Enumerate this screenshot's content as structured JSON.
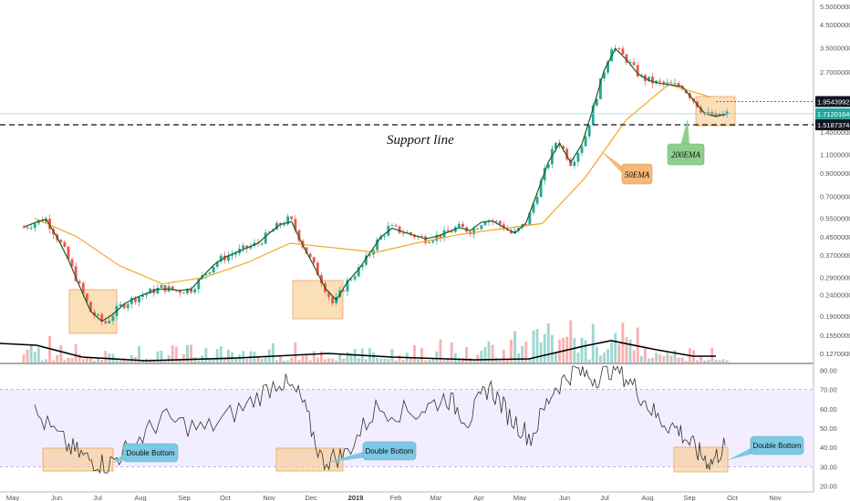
{
  "chart_data": {
    "type": "candlestick",
    "price_axis": {
      "scale": "log",
      "range": [
        0.115,
        5.6
      ],
      "tick_labels": [
        "5.50000000",
        "4.50000000",
        "3.50000000",
        "2.70000000",
        "1.95439925",
        "1.71201640",
        "1.51873745",
        "1.40000000",
        "1.10000000",
        "0.90000000",
        "0.70000000",
        "0.55000000",
        "0.45000000",
        "0.37000000",
        "0.29000000",
        "0.24000000",
        "0.19000000",
        "0.15500000",
        "0.12700000"
      ],
      "tick_values": [
        5.5,
        4.5,
        3.5,
        2.7,
        1.95439925,
        1.7120164,
        1.51873745,
        1.4,
        1.1,
        0.9,
        0.7,
        0.55,
        0.45,
        0.37,
        0.29,
        0.24,
        0.19,
        0.155,
        0.127
      ],
      "badges": [
        {
          "label": "1.95439925",
          "value": 1.95439925,
          "color": "#131722"
        },
        {
          "label": "1.71201640",
          "value": 1.7120164,
          "color": "#26a69a"
        },
        {
          "label": "1.51873745",
          "value": 1.51873745,
          "color": "#131722"
        }
      ]
    },
    "rsi_axis": {
      "range": [
        17,
        83
      ],
      "tick_labels": [
        "80.00",
        "70.00",
        "60.00",
        "50.00",
        "40.00",
        "30.00",
        "20.00"
      ],
      "tick_values": [
        80,
        70,
        60,
        50,
        40,
        30,
        20
      ],
      "band": [
        30,
        70
      ]
    },
    "x_axis": {
      "labels": [
        "May",
        "Jun",
        "Jul",
        "Aug",
        "Sep",
        "Oct",
        "Nov",
        "Dec",
        "2019",
        "Feb",
        "Mar",
        "Apr",
        "May",
        "Jun",
        "Jul",
        "Aug",
        "Sep",
        "Oct",
        "Nov"
      ],
      "bold_label": "2019"
    },
    "lines": {
      "support": 1.51873745,
      "resistance": 1.95439925,
      "last_price": 1.7120164
    },
    "price_series": {
      "name": "Price",
      "points": [
        [
          "May",
          0.5
        ],
        [
          "May",
          0.55
        ],
        [
          "Jun",
          0.4
        ],
        [
          "Jun",
          0.28
        ],
        [
          "Jun",
          0.2
        ],
        [
          "Jul",
          0.175
        ],
        [
          "Jul",
          0.21
        ],
        [
          "Jul",
          0.23
        ],
        [
          "Aug",
          0.245
        ],
        [
          "Aug",
          0.26
        ],
        [
          "Aug",
          0.25
        ],
        [
          "Sep",
          0.255
        ],
        [
          "Sep",
          0.3
        ],
        [
          "Sep",
          0.35
        ],
        [
          "Oct",
          0.38
        ],
        [
          "Oct",
          0.42
        ],
        [
          "Nov",
          0.5
        ],
        [
          "Nov",
          0.55
        ],
        [
          "Nov",
          0.4
        ],
        [
          "Dec",
          0.3
        ],
        [
          "Dec",
          0.215
        ],
        [
          "Dec",
          0.28
        ],
        [
          "2019",
          0.33
        ],
        [
          "2019",
          0.42
        ],
        [
          "2019",
          0.5
        ],
        [
          "Feb",
          0.47
        ],
        [
          "Feb",
          0.44
        ],
        [
          "Mar",
          0.46
        ],
        [
          "Mar",
          0.5
        ],
        [
          "Mar",
          0.48
        ],
        [
          "Apr",
          0.55
        ],
        [
          "Apr",
          0.52
        ],
        [
          "Apr",
          0.46
        ],
        [
          "May",
          0.53
        ],
        [
          "May",
          0.85
        ],
        [
          "May",
          1.3
        ],
        [
          "Jun",
          1.0
        ],
        [
          "Jun",
          1.3
        ],
        [
          "Jun",
          2.2
        ],
        [
          "Jul",
          3.6
        ],
        [
          "Jul",
          3.1
        ],
        [
          "Jul",
          2.55
        ],
        [
          "Aug",
          2.4
        ],
        [
          "Aug",
          2.35
        ],
        [
          "Aug",
          2.3
        ],
        [
          "Sep",
          1.95
        ],
        [
          "Sep",
          1.7
        ],
        [
          "Sep",
          1.66
        ],
        [
          "Sep",
          1.71
        ]
      ]
    },
    "ema50": {
      "name": "50EMA",
      "points": [
        [
          "May",
          0.55
        ],
        [
          "Jun",
          0.45
        ],
        [
          "Jul",
          0.33
        ],
        [
          "Aug",
          0.27
        ],
        [
          "Sep",
          0.29
        ],
        [
          "Oct",
          0.34
        ],
        [
          "Nov",
          0.42
        ],
        [
          "Dec",
          0.4
        ],
        [
          "2019",
          0.38
        ],
        [
          "Feb",
          0.42
        ],
        [
          "Mar",
          0.46
        ],
        [
          "Apr",
          0.49
        ],
        [
          "May",
          0.52
        ],
        [
          "Jun",
          0.85
        ],
        [
          "Jul",
          1.6
        ],
        [
          "Aug",
          2.35
        ],
        [
          "Sep",
          2.05
        ]
      ]
    },
    "ema200_volume": {
      "name": "200EMA"
    },
    "rsi_series": {
      "points": [
        [
          "May",
          58
        ],
        [
          "Jun",
          41
        ],
        [
          "Jun",
          34
        ],
        [
          "Jul",
          31
        ],
        [
          "Jul",
          40
        ],
        [
          "Aug",
          55
        ],
        [
          "Sep",
          49
        ],
        [
          "Oct",
          62
        ],
        [
          "Nov",
          75
        ],
        [
          "Nov",
          66
        ],
        [
          "Dec",
          33
        ],
        [
          "Dec",
          36
        ],
        [
          "2019",
          60
        ],
        [
          "Feb",
          58
        ],
        [
          "Mar",
          66
        ],
        [
          "Mar",
          54
        ],
        [
          "Apr",
          72
        ],
        [
          "Apr",
          56
        ],
        [
          "May",
          45
        ],
        [
          "May",
          70
        ],
        [
          "Jun",
          80
        ],
        [
          "Jun",
          76
        ],
        [
          "Jul",
          82
        ],
        [
          "Jul",
          70
        ],
        [
          "Aug",
          55
        ],
        [
          "Aug",
          49
        ],
        [
          "Sep",
          38
        ],
        [
          "Sep",
          32
        ],
        [
          "Sep",
          41
        ]
      ]
    },
    "annotations": {
      "support_label": "Support line",
      "ema50_label": "50EMA",
      "ema200_label": "200EMA",
      "double_bottom_1": "Double Bottom",
      "double_bottom_2": "Double Bottom",
      "double_bottom_3": "Double Bottom"
    },
    "colors": {
      "up": "#26a69a",
      "down": "#ef5350",
      "ema50": "#f5a623",
      "ema_fast": "#1b5e20",
      "rsi_band": "#f3eeff",
      "highlight": "#f8c98b",
      "callout_blue": "#7ec8e3",
      "callout_orange": "#f5b87a",
      "callout_green": "#8ecf8e"
    },
    "grid": false
  }
}
